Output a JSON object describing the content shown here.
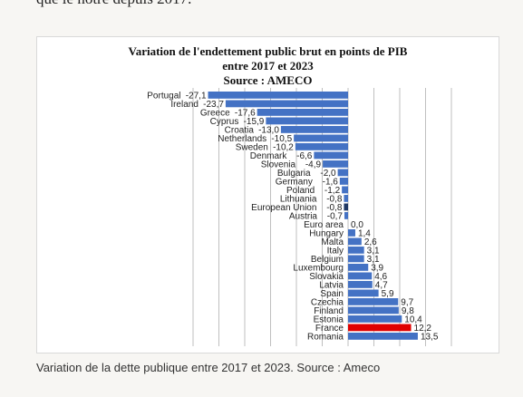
{
  "article": {
    "top_text": "que le notre depuis 2017.",
    "caption": "Variation de la dette publique entre 2017 et 2023. Source : Ameco"
  },
  "colors": {
    "bar_default": "#4472c4",
    "bar_eu": "#1f3864",
    "bar_france": "#e00000",
    "grid": "#bfbfbf"
  },
  "chart_data": {
    "type": "bar",
    "orientation": "horizontal",
    "title_lines": [
      "Variation  de l'endettement public brut en points de PIB",
      "entre 2017 et 2023",
      "Source : AMECO"
    ],
    "categories": [
      "Portugal",
      "Ireland",
      "Greece",
      "Cyprus",
      "Croatia",
      "Netherlands",
      "Sweden",
      "Denmark",
      "Slovenia",
      "Bulgaria",
      "Germany",
      "Poland",
      "Lithuania",
      "European Union",
      "Austria",
      "Euro area",
      "Hungary",
      "Malta",
      "Italy",
      "Belgium",
      "Luxembourg",
      "Slovakia",
      "Latvia",
      "Spain",
      "Czechia",
      "Finland",
      "Estonia",
      "France",
      "Romania"
    ],
    "values": [
      -27.1,
      -23.7,
      -17.6,
      -15.9,
      -13.0,
      -10.5,
      -10.2,
      -6.6,
      -4.9,
      -2.0,
      -1.6,
      -1.2,
      -0.8,
      -0.8,
      -0.7,
      0.0,
      1.4,
      2.6,
      3.1,
      3.1,
      3.9,
      4.6,
      4.7,
      5.9,
      9.7,
      9.8,
      10.4,
      12.2,
      13.5
    ],
    "value_labels": [
      "-27,1",
      "-23,7",
      "-17,6",
      "-15,9",
      "-13,0",
      "-10,5",
      "-10,2",
      "-6,6",
      "-4,9",
      "-2,0",
      "-1,6",
      "-1,2",
      "-0,8",
      "-0,8",
      "-0,7",
      "0,0",
      "1,4",
      "2,6",
      "3,1",
      "3,1",
      "3,9",
      "4,6",
      "4,7",
      "5,9",
      "9,7",
      "9,8",
      "10,4",
      "12,2",
      "13,5"
    ],
    "highlight": {
      "France": "bar_france",
      "European Union": "bar_eu"
    },
    "xlim": [
      -30,
      20
    ],
    "grid": true,
    "xlabel": "",
    "ylabel": ""
  }
}
